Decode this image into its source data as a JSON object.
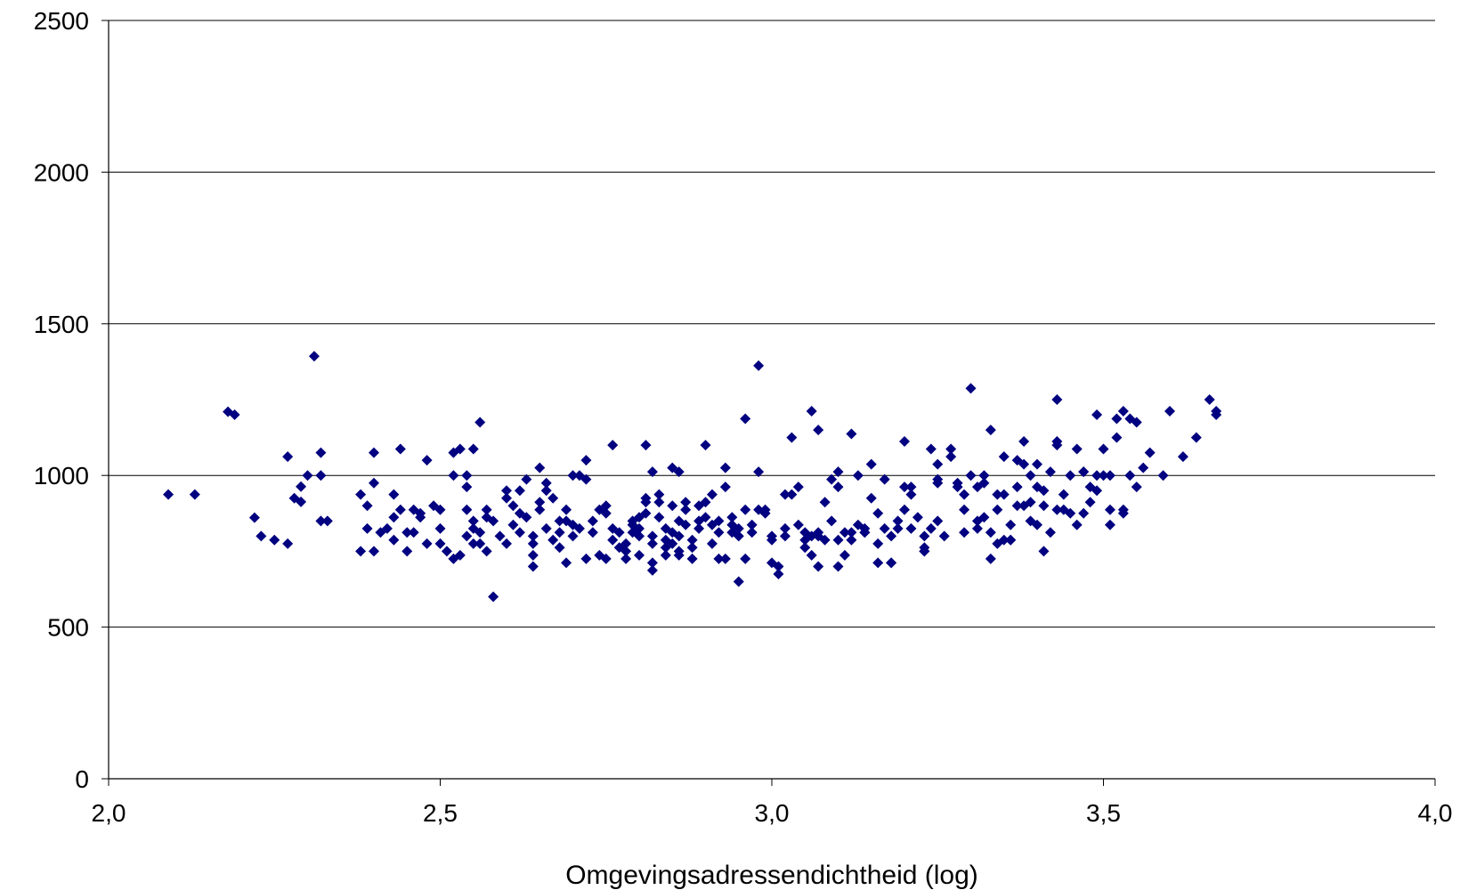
{
  "chart_data": {
    "type": "scatter",
    "title": "",
    "xlabel": "Omgevingsadressendichtheid (log)",
    "ylabel": "",
    "xlim": [
      2.0,
      4.0
    ],
    "ylim": [
      0,
      2500
    ],
    "x_ticks": [
      2.0,
      2.5,
      3.0,
      3.5,
      4.0
    ],
    "x_tick_labels": [
      "2,0",
      "2,5",
      "3,0",
      "3,5",
      "4,0"
    ],
    "y_ticks": [
      0,
      500,
      1000,
      1500,
      2000,
      2500
    ],
    "y_tick_labels": [
      "0",
      "500",
      "1000",
      "1500",
      "2000",
      "2500"
    ],
    "grid": "horizontal",
    "legend": "none",
    "marker": "diamond",
    "marker_color": "#000080",
    "points": [
      [
        2.09,
        937
      ],
      [
        2.13,
        937
      ],
      [
        2.18,
        1210
      ],
      [
        2.19,
        1200
      ],
      [
        2.22,
        861
      ],
      [
        2.23,
        800
      ],
      [
        2.25,
        787
      ],
      [
        2.27,
        1062
      ],
      [
        2.27,
        775
      ],
      [
        2.28,
        925
      ],
      [
        2.29,
        913
      ],
      [
        2.29,
        963
      ],
      [
        2.3,
        1000
      ],
      [
        2.31,
        1393
      ],
      [
        2.32,
        1075
      ],
      [
        2.32,
        1000
      ],
      [
        2.32,
        850
      ],
      [
        2.33,
        850
      ],
      [
        2.38,
        750
      ],
      [
        2.38,
        937
      ],
      [
        2.39,
        900
      ],
      [
        2.39,
        825
      ],
      [
        2.4,
        1075
      ],
      [
        2.4,
        975
      ],
      [
        2.4,
        750
      ],
      [
        2.41,
        812
      ],
      [
        2.42,
        825
      ],
      [
        2.43,
        937
      ],
      [
        2.43,
        862
      ],
      [
        2.43,
        787
      ],
      [
        2.44,
        1087
      ],
      [
        2.44,
        887
      ],
      [
        2.45,
        812
      ],
      [
        2.45,
        750
      ],
      [
        2.46,
        887
      ],
      [
        2.46,
        812
      ],
      [
        2.47,
        862
      ],
      [
        2.47,
        875
      ],
      [
        2.48,
        1050
      ],
      [
        2.48,
        775
      ],
      [
        2.49,
        900
      ],
      [
        2.5,
        887
      ],
      [
        2.5,
        825
      ],
      [
        2.5,
        775
      ],
      [
        2.51,
        750
      ],
      [
        2.52,
        725
      ],
      [
        2.52,
        1075
      ],
      [
        2.52,
        1000
      ],
      [
        2.53,
        1087
      ],
      [
        2.53,
        737
      ],
      [
        2.54,
        887
      ],
      [
        2.54,
        962
      ],
      [
        2.54,
        1000
      ],
      [
        2.54,
        800
      ],
      [
        2.55,
        1087
      ],
      [
        2.55,
        775
      ],
      [
        2.55,
        850
      ],
      [
        2.55,
        825
      ],
      [
        2.56,
        1175
      ],
      [
        2.56,
        812
      ],
      [
        2.56,
        775
      ],
      [
        2.57,
        887
      ],
      [
        2.57,
        862
      ],
      [
        2.57,
        750
      ],
      [
        2.58,
        600
      ],
      [
        2.58,
        850
      ],
      [
        2.59,
        800
      ],
      [
        2.6,
        950
      ],
      [
        2.6,
        925
      ],
      [
        2.6,
        775
      ],
      [
        2.61,
        900
      ],
      [
        2.61,
        837
      ],
      [
        2.62,
        875
      ],
      [
        2.62,
        812
      ],
      [
        2.62,
        950
      ],
      [
        2.63,
        987
      ],
      [
        2.63,
        862
      ],
      [
        2.64,
        800
      ],
      [
        2.64,
        737
      ],
      [
        2.64,
        775
      ],
      [
        2.64,
        700
      ],
      [
        2.65,
        1025
      ],
      [
        2.65,
        912
      ],
      [
        2.65,
        887
      ],
      [
        2.66,
        975
      ],
      [
        2.66,
        825
      ],
      [
        2.66,
        950
      ],
      [
        2.67,
        925
      ],
      [
        2.67,
        787
      ],
      [
        2.68,
        850
      ],
      [
        2.68,
        762
      ],
      [
        2.68,
        812
      ],
      [
        2.69,
        887
      ],
      [
        2.69,
        712
      ],
      [
        2.69,
        850
      ],
      [
        2.7,
        837
      ],
      [
        2.7,
        800
      ],
      [
        2.7,
        1000
      ],
      [
        2.71,
        825
      ],
      [
        2.71,
        1000
      ],
      [
        2.72,
        1050
      ],
      [
        2.72,
        987
      ],
      [
        2.72,
        725
      ],
      [
        2.73,
        812
      ],
      [
        2.73,
        850
      ],
      [
        2.74,
        887
      ],
      [
        2.74,
        737
      ],
      [
        2.75,
        900
      ],
      [
        2.75,
        875
      ],
      [
        2.75,
        725
      ],
      [
        2.76,
        1100
      ],
      [
        2.76,
        825
      ],
      [
        2.76,
        787
      ],
      [
        2.77,
        812
      ],
      [
        2.77,
        762
      ],
      [
        2.78,
        725
      ],
      [
        2.78,
        750
      ],
      [
        2.78,
        775
      ],
      [
        2.79,
        850
      ],
      [
        2.79,
        837
      ],
      [
        2.79,
        812
      ],
      [
        2.8,
        800
      ],
      [
        2.8,
        825
      ],
      [
        2.8,
        737
      ],
      [
        2.8,
        862
      ],
      [
        2.81,
        925
      ],
      [
        2.81,
        912
      ],
      [
        2.81,
        875
      ],
      [
        2.81,
        1100
      ],
      [
        2.82,
        1012
      ],
      [
        2.82,
        800
      ],
      [
        2.82,
        775
      ],
      [
        2.82,
        712
      ],
      [
        2.82,
        687
      ],
      [
        2.83,
        937
      ],
      [
        2.83,
        912
      ],
      [
        2.83,
        862
      ],
      [
        2.84,
        825
      ],
      [
        2.84,
        787
      ],
      [
        2.84,
        762
      ],
      [
        2.84,
        737
      ],
      [
        2.85,
        900
      ],
      [
        2.85,
        812
      ],
      [
        2.85,
        775
      ],
      [
        2.85,
        1025
      ],
      [
        2.86,
        1012
      ],
      [
        2.86,
        850
      ],
      [
        2.86,
        800
      ],
      [
        2.86,
        750
      ],
      [
        2.86,
        737
      ],
      [
        2.87,
        912
      ],
      [
        2.87,
        887
      ],
      [
        2.87,
        837
      ],
      [
        2.88,
        787
      ],
      [
        2.88,
        762
      ],
      [
        2.88,
        725
      ],
      [
        2.89,
        900
      ],
      [
        2.89,
        850
      ],
      [
        2.89,
        825
      ],
      [
        2.9,
        912
      ],
      [
        2.9,
        862
      ],
      [
        2.9,
        1100
      ],
      [
        2.91,
        937
      ],
      [
        2.91,
        837
      ],
      [
        2.91,
        775
      ],
      [
        2.92,
        850
      ],
      [
        2.92,
        812
      ],
      [
        2.92,
        725
      ],
      [
        2.93,
        725
      ],
      [
        2.93,
        962
      ],
      [
        2.93,
        1025
      ],
      [
        2.94,
        862
      ],
      [
        2.94,
        837
      ],
      [
        2.94,
        812
      ],
      [
        2.95,
        800
      ],
      [
        2.95,
        825
      ],
      [
        2.95,
        650
      ],
      [
        2.96,
        887
      ],
      [
        2.96,
        1187
      ],
      [
        2.96,
        725
      ],
      [
        2.97,
        837
      ],
      [
        2.97,
        812
      ],
      [
        2.98,
        1012
      ],
      [
        2.98,
        1362
      ],
      [
        2.98,
        887
      ],
      [
        2.99,
        887
      ],
      [
        2.99,
        875
      ],
      [
        3.0,
        800
      ],
      [
        3.0,
        787
      ],
      [
        3.0,
        712
      ],
      [
        3.01,
        700
      ],
      [
        3.01,
        675
      ],
      [
        3.02,
        825
      ],
      [
        3.02,
        937
      ],
      [
        3.02,
        800
      ],
      [
        3.03,
        1125
      ],
      [
        3.03,
        937
      ],
      [
        3.04,
        962
      ],
      [
        3.04,
        837
      ],
      [
        3.05,
        812
      ],
      [
        3.05,
        787
      ],
      [
        3.05,
        762
      ],
      [
        3.06,
        1212
      ],
      [
        3.06,
        800
      ],
      [
        3.06,
        737
      ],
      [
        3.07,
        1150
      ],
      [
        3.07,
        812
      ],
      [
        3.07,
        800
      ],
      [
        3.07,
        700
      ],
      [
        3.08,
        912
      ],
      [
        3.08,
        787
      ],
      [
        3.09,
        850
      ],
      [
        3.09,
        987
      ],
      [
        3.1,
        1012
      ],
      [
        3.1,
        962
      ],
      [
        3.1,
        700
      ],
      [
        3.1,
        787
      ],
      [
        3.11,
        737
      ],
      [
        3.11,
        812
      ],
      [
        3.12,
        812
      ],
      [
        3.12,
        787
      ],
      [
        3.12,
        1137
      ],
      [
        3.13,
        1000
      ],
      [
        3.13,
        837
      ],
      [
        3.14,
        825
      ],
      [
        3.14,
        812
      ],
      [
        3.14,
        812
      ],
      [
        3.15,
        1037
      ],
      [
        3.15,
        925
      ],
      [
        3.16,
        875
      ],
      [
        3.16,
        775
      ],
      [
        3.16,
        712
      ],
      [
        3.17,
        987
      ],
      [
        3.17,
        825
      ],
      [
        3.18,
        800
      ],
      [
        3.18,
        712
      ],
      [
        3.18,
        712
      ],
      [
        3.19,
        825
      ],
      [
        3.19,
        850
      ],
      [
        3.2,
        1112
      ],
      [
        3.2,
        962
      ],
      [
        3.2,
        887
      ],
      [
        3.21,
        962
      ],
      [
        3.21,
        937
      ],
      [
        3.21,
        825
      ],
      [
        3.22,
        862
      ],
      [
        3.23,
        762
      ],
      [
        3.23,
        800
      ],
      [
        3.23,
        750
      ],
      [
        3.23,
        750
      ],
      [
        3.24,
        1087
      ],
      [
        3.24,
        825
      ],
      [
        3.25,
        1037
      ],
      [
        3.25,
        987
      ],
      [
        3.25,
        975
      ],
      [
        3.25,
        850
      ],
      [
        3.26,
        800
      ],
      [
        3.27,
        1087
      ],
      [
        3.27,
        1062
      ],
      [
        3.28,
        975
      ],
      [
        3.28,
        962
      ],
      [
        3.29,
        937
      ],
      [
        3.29,
        887
      ],
      [
        3.29,
        812
      ],
      [
        3.3,
        1287
      ],
      [
        3.3,
        1000
      ],
      [
        3.31,
        962
      ],
      [
        3.31,
        825
      ],
      [
        3.31,
        850
      ],
      [
        3.32,
        975
      ],
      [
        3.32,
        1000
      ],
      [
        3.32,
        862
      ],
      [
        3.33,
        1150
      ],
      [
        3.33,
        812
      ],
      [
        3.33,
        725
      ],
      [
        3.34,
        887
      ],
      [
        3.34,
        937
      ],
      [
        3.34,
        775
      ],
      [
        3.35,
        1062
      ],
      [
        3.35,
        787
      ],
      [
        3.35,
        937
      ],
      [
        3.36,
        787
      ],
      [
        3.36,
        787
      ],
      [
        3.36,
        837
      ],
      [
        3.37,
        1050
      ],
      [
        3.37,
        962
      ],
      [
        3.37,
        900
      ],
      [
        3.38,
        1112
      ],
      [
        3.38,
        1037
      ],
      [
        3.38,
        900
      ],
      [
        3.39,
        1000
      ],
      [
        3.39,
        850
      ],
      [
        3.39,
        912
      ],
      [
        3.4,
        1037
      ],
      [
        3.4,
        962
      ],
      [
        3.4,
        837
      ],
      [
        3.41,
        950
      ],
      [
        3.41,
        900
      ],
      [
        3.41,
        750
      ],
      [
        3.42,
        1012
      ],
      [
        3.42,
        812
      ],
      [
        3.43,
        1250
      ],
      [
        3.43,
        1100
      ],
      [
        3.43,
        1112
      ],
      [
        3.43,
        887
      ],
      [
        3.44,
        887
      ],
      [
        3.44,
        937
      ],
      [
        3.45,
        1000
      ],
      [
        3.45,
        875
      ],
      [
        3.46,
        837
      ],
      [
        3.46,
        1087
      ],
      [
        3.47,
        1012
      ],
      [
        3.47,
        1012
      ],
      [
        3.47,
        875
      ],
      [
        3.48,
        962
      ],
      [
        3.48,
        912
      ],
      [
        3.49,
        950
      ],
      [
        3.49,
        1000
      ],
      [
        3.49,
        1200
      ],
      [
        3.5,
        1087
      ],
      [
        3.5,
        1000
      ],
      [
        3.51,
        1000
      ],
      [
        3.51,
        887
      ],
      [
        3.51,
        837
      ],
      [
        3.52,
        1125
      ],
      [
        3.52,
        1187
      ],
      [
        3.53,
        887
      ],
      [
        3.53,
        875
      ],
      [
        3.53,
        1212
      ],
      [
        3.54,
        1000
      ],
      [
        3.54,
        1187
      ],
      [
        3.55,
        1175
      ],
      [
        3.55,
        962
      ],
      [
        3.56,
        1025
      ],
      [
        3.57,
        1075
      ],
      [
        3.59,
        1000
      ],
      [
        3.6,
        1212
      ],
      [
        3.62,
        1062
      ],
      [
        3.64,
        1125
      ],
      [
        3.66,
        1250
      ],
      [
        3.67,
        1212
      ],
      [
        3.67,
        1200
      ]
    ]
  }
}
